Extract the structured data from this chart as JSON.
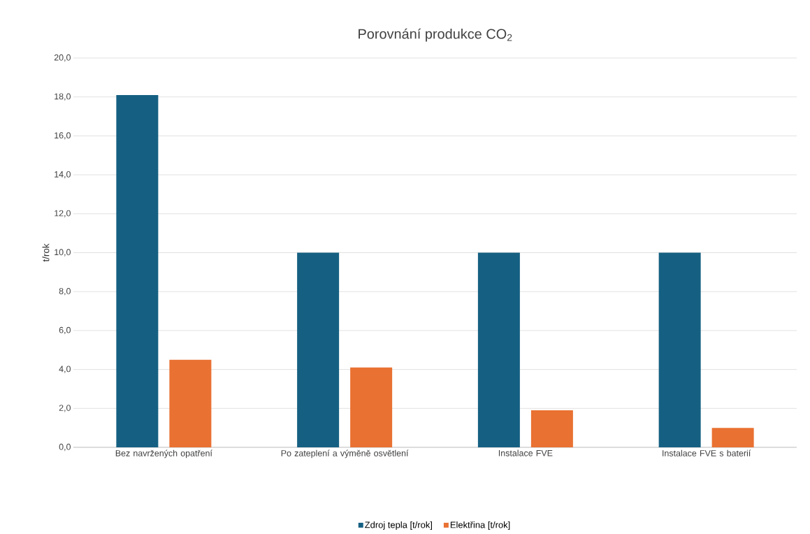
{
  "chart_data": {
    "type": "bar",
    "title": "Porovnání produkce CO$_{2}$",
    "ylabel": "t/rok",
    "categories": [
      "Bez navržených opatření",
      "Po zateplení a výměně osvětlení",
      "Instalace FVE",
      "Instalace FVE s baterií"
    ],
    "series": [
      {
        "name": "Zdroj tepla [t/rok]",
        "color": "#156082",
        "values": [
          18.1,
          10.0,
          10.0,
          10.0
        ]
      },
      {
        "name": "Elektřina [t/rok]",
        "color": "#e97132",
        "values": [
          4.5,
          4.1,
          1.9,
          1.0
        ]
      }
    ],
    "ylim": [
      0,
      20
    ],
    "yticks": [
      {
        "value": 0,
        "label": "0,0"
      },
      {
        "value": 2,
        "label": "2,0"
      },
      {
        "value": 4,
        "label": "4,0"
      },
      {
        "value": 6,
        "label": "6,0"
      },
      {
        "value": 8,
        "label": "8,0"
      },
      {
        "value": 10,
        "label": "10,0"
      },
      {
        "value": 12,
        "label": "12,0"
      },
      {
        "value": 14,
        "label": "14,0"
      },
      {
        "value": 16,
        "label": "16,0"
      },
      {
        "value": 18,
        "label": "18,0"
      },
      {
        "value": 20,
        "label": "20,0"
      }
    ],
    "grid": "y",
    "legend": "bottom"
  }
}
